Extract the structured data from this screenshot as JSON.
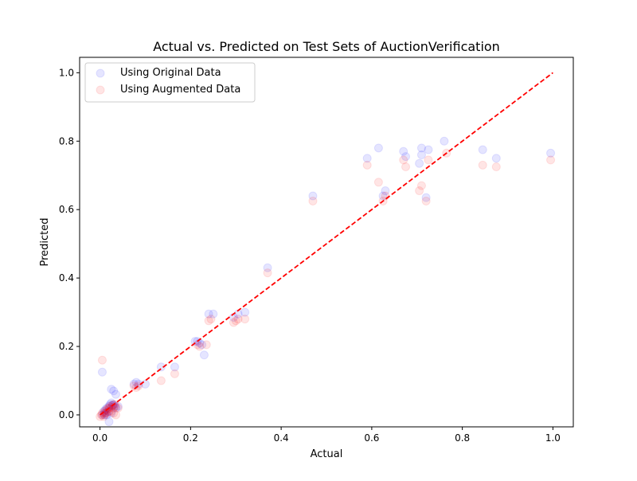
{
  "chart_data": {
    "type": "scatter",
    "title": "Actual vs. Predicted on Test Sets of AuctionVerification",
    "xlabel": "Actual",
    "ylabel": "Predicted",
    "xlim": [
      -0.045,
      1.045
    ],
    "ylim": [
      -0.035,
      1.045
    ],
    "xticks": [
      0.0,
      0.2,
      0.4,
      0.6,
      0.8,
      1.0
    ],
    "yticks": [
      0.0,
      0.2,
      0.4,
      0.6,
      0.8,
      1.0
    ],
    "xtick_labels": [
      "0.0",
      "0.2",
      "0.4",
      "0.6",
      "0.8",
      "1.0"
    ],
    "ytick_labels": [
      "0.0",
      "0.2",
      "0.4",
      "0.6",
      "0.8",
      "1.0"
    ],
    "grid": false,
    "legend_position": "top-left",
    "reference_line": {
      "x": [
        0,
        1
      ],
      "y": [
        0,
        1
      ],
      "color": "#ff0000",
      "style": "dashed"
    },
    "series": [
      {
        "name": "Using Original Data",
        "color": "#0000ff",
        "points": [
          [
            0.005,
            0.125
          ],
          [
            0.005,
            0.0
          ],
          [
            0.008,
            0.01
          ],
          [
            0.01,
            0.0
          ],
          [
            0.012,
            0.015
          ],
          [
            0.015,
            0.02
          ],
          [
            0.018,
            0.01
          ],
          [
            0.02,
            0.025
          ],
          [
            0.022,
            0.03
          ],
          [
            0.025,
            0.035
          ],
          [
            0.028,
            0.028
          ],
          [
            0.03,
            0.03
          ],
          [
            0.032,
            0.025
          ],
          [
            0.035,
            0.02
          ],
          [
            0.025,
            0.075
          ],
          [
            0.03,
            0.07
          ],
          [
            0.025,
            0.005
          ],
          [
            0.02,
            -0.02
          ],
          [
            0.035,
            0.06
          ],
          [
            0.01,
            0.005
          ],
          [
            0.015,
            0.0
          ],
          [
            0.04,
            0.025
          ],
          [
            0.075,
            0.09
          ],
          [
            0.08,
            0.095
          ],
          [
            0.085,
            0.09
          ],
          [
            0.1,
            0.09
          ],
          [
            0.135,
            0.14
          ],
          [
            0.165,
            0.14
          ],
          [
            0.21,
            0.215
          ],
          [
            0.215,
            0.215
          ],
          [
            0.22,
            0.21
          ],
          [
            0.225,
            0.205
          ],
          [
            0.23,
            0.175
          ],
          [
            0.24,
            0.295
          ],
          [
            0.25,
            0.295
          ],
          [
            0.295,
            0.285
          ],
          [
            0.305,
            0.295
          ],
          [
            0.32,
            0.3
          ],
          [
            0.37,
            0.43
          ],
          [
            0.47,
            0.64
          ],
          [
            0.59,
            0.75
          ],
          [
            0.615,
            0.78
          ],
          [
            0.625,
            0.64
          ],
          [
            0.63,
            0.655
          ],
          [
            0.67,
            0.77
          ],
          [
            0.675,
            0.755
          ],
          [
            0.705,
            0.735
          ],
          [
            0.71,
            0.76
          ],
          [
            0.71,
            0.78
          ],
          [
            0.72,
            0.635
          ],
          [
            0.725,
            0.775
          ],
          [
            0.76,
            0.8
          ],
          [
            0.845,
            0.775
          ],
          [
            0.875,
            0.75
          ],
          [
            0.995,
            0.765
          ]
        ]
      },
      {
        "name": "Using Augmented Data",
        "color": "#ff0000",
        "points": [
          [
            0.005,
            0.16
          ],
          [
            0.0,
            -0.005
          ],
          [
            0.005,
            0.005
          ],
          [
            0.008,
            -0.005
          ],
          [
            0.01,
            0.01
          ],
          [
            0.012,
            0.005
          ],
          [
            0.015,
            0.015
          ],
          [
            0.018,
            0.02
          ],
          [
            0.02,
            0.018
          ],
          [
            0.022,
            0.025
          ],
          [
            0.025,
            0.022
          ],
          [
            0.028,
            0.03
          ],
          [
            0.03,
            0.02
          ],
          [
            0.032,
            0.03
          ],
          [
            0.035,
            0.025
          ],
          [
            0.025,
            0.01
          ],
          [
            0.03,
            0.005
          ],
          [
            0.035,
            0.0
          ],
          [
            0.02,
            0.01
          ],
          [
            0.015,
            0.005
          ],
          [
            0.01,
            0.0
          ],
          [
            0.003,
            0.0
          ],
          [
            0.04,
            0.02
          ],
          [
            0.075,
            0.085
          ],
          [
            0.08,
            0.08
          ],
          [
            0.085,
            0.085
          ],
          [
            0.135,
            0.1
          ],
          [
            0.165,
            0.12
          ],
          [
            0.215,
            0.205
          ],
          [
            0.22,
            0.2
          ],
          [
            0.235,
            0.205
          ],
          [
            0.24,
            0.275
          ],
          [
            0.245,
            0.28
          ],
          [
            0.295,
            0.27
          ],
          [
            0.3,
            0.275
          ],
          [
            0.305,
            0.28
          ],
          [
            0.32,
            0.28
          ],
          [
            0.37,
            0.415
          ],
          [
            0.47,
            0.625
          ],
          [
            0.59,
            0.73
          ],
          [
            0.615,
            0.68
          ],
          [
            0.625,
            0.625
          ],
          [
            0.63,
            0.64
          ],
          [
            0.67,
            0.745
          ],
          [
            0.675,
            0.725
          ],
          [
            0.705,
            0.655
          ],
          [
            0.71,
            0.67
          ],
          [
            0.72,
            0.625
          ],
          [
            0.725,
            0.745
          ],
          [
            0.765,
            0.765
          ],
          [
            0.845,
            0.73
          ],
          [
            0.875,
            0.725
          ],
          [
            0.995,
            0.745
          ]
        ]
      }
    ]
  }
}
